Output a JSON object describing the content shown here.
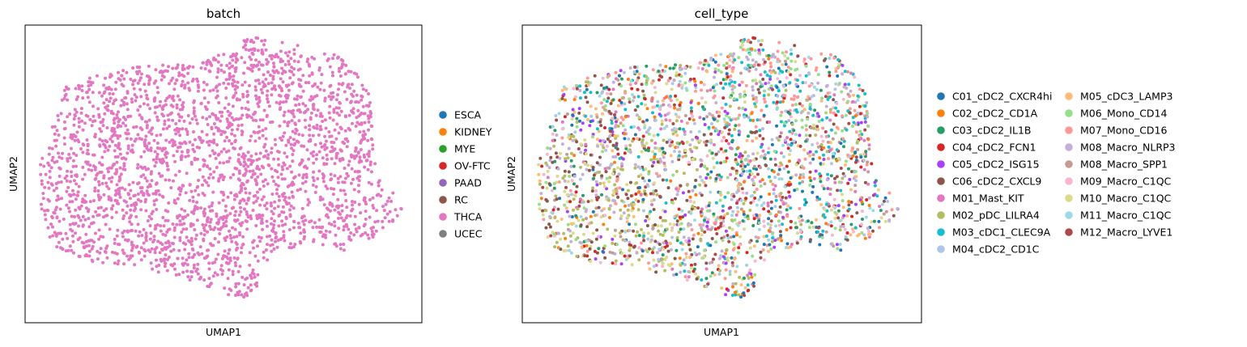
{
  "chart_data": [
    {
      "type": "scatter",
      "title": "batch",
      "xlabel": "UMAP1",
      "ylabel": "UMAP2",
      "grid": false,
      "ticks": false,
      "legend_position": "right",
      "legend": [
        {
          "label": "ESCA",
          "color": "#1f77b4"
        },
        {
          "label": "KIDNEY",
          "color": "#ff7f0e"
        },
        {
          "label": "MYE",
          "color": "#2ca02c"
        },
        {
          "label": "OV-FTC",
          "color": "#d62728"
        },
        {
          "label": "PAAD",
          "color": "#9467bd"
        },
        {
          "label": "RC",
          "color": "#8c564b"
        },
        {
          "label": "THCA",
          "color": "#e377c2"
        },
        {
          "label": "UCEC",
          "color": "#7f7f7f"
        }
      ],
      "point_color": "#e377c2"
    },
    {
      "type": "scatter",
      "title": "cell_type",
      "xlabel": "UMAP1",
      "ylabel": "UMAP2",
      "grid": false,
      "ticks": false,
      "legend_position": "right",
      "legend_columns": 2,
      "legend": [
        {
          "label": "C01_cDC2_CXCR4hi",
          "color": "#1f77b4"
        },
        {
          "label": "C02_cDC2_CD1A",
          "color": "#ff7f0e"
        },
        {
          "label": "C03_cDC2_IL1B",
          "color": "#279e68"
        },
        {
          "label": "C04_cDC2_FCN1",
          "color": "#d62728"
        },
        {
          "label": "C05_cDC2_ISG15",
          "color": "#aa40fc"
        },
        {
          "label": "C06_cDC2_CXCL9",
          "color": "#8c564b"
        },
        {
          "label": "M01_Mast_KIT",
          "color": "#e377c2"
        },
        {
          "label": "M02_pDC_LILRA4",
          "color": "#b5bd61"
        },
        {
          "label": "M03_cDC1_CLEC9A",
          "color": "#17becf"
        },
        {
          "label": "M04_cDC2_CD1C",
          "color": "#aec7e8"
        },
        {
          "label": "M05_cDC3_LAMP3",
          "color": "#ffbb78"
        },
        {
          "label": "M06_Mono_CD14",
          "color": "#98df8a"
        },
        {
          "label": "M07_Mono_CD16",
          "color": "#ff9896"
        },
        {
          "label": "M08_Macro_NLRP3",
          "color": "#c5b0d5"
        },
        {
          "label": "M08_Macro_SPP1",
          "color": "#c49c94"
        },
        {
          "label": "M09_Macro_C1QC",
          "color": "#f7b6d2"
        },
        {
          "label": "M10_Macro_C1QC",
          "color": "#dbdb8d"
        },
        {
          "label": "M11_Macro_C1QC",
          "color": "#9edae5"
        },
        {
          "label": "M12_Macro_LYVE1",
          "color": "#ad494a"
        }
      ]
    }
  ]
}
